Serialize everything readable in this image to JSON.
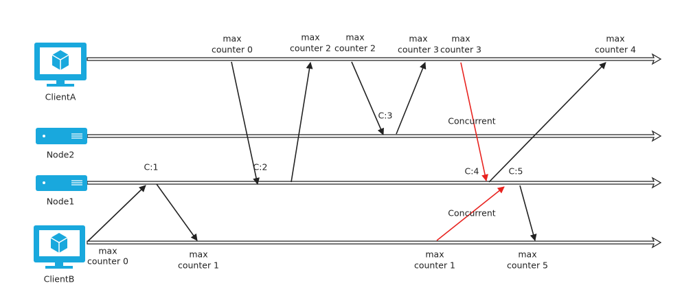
{
  "actors": [
    {
      "label": "ClientA"
    },
    {
      "label": "Node2"
    },
    {
      "label": "Node1"
    },
    {
      "label": "ClientB"
    }
  ],
  "clienta_notes": [
    [
      "max",
      "counter 0"
    ],
    [
      "max",
      "counter 2"
    ],
    [
      "max",
      "counter 2"
    ],
    [
      "max",
      "counter 3"
    ],
    [
      "max",
      "counter 3"
    ],
    [
      "max",
      "counter 4"
    ]
  ],
  "clientb_notes": [
    [
      "max",
      "counter 0"
    ],
    [
      "max",
      "counter 1"
    ],
    [
      "max",
      "counter 1"
    ],
    [
      "max",
      "counter 5"
    ]
  ],
  "node_labels": [
    "C:1",
    "C:2",
    "C:3",
    "C:4",
    "C:5"
  ],
  "concurrent_labels": [
    "Concurrent",
    "Concurrent"
  ]
}
